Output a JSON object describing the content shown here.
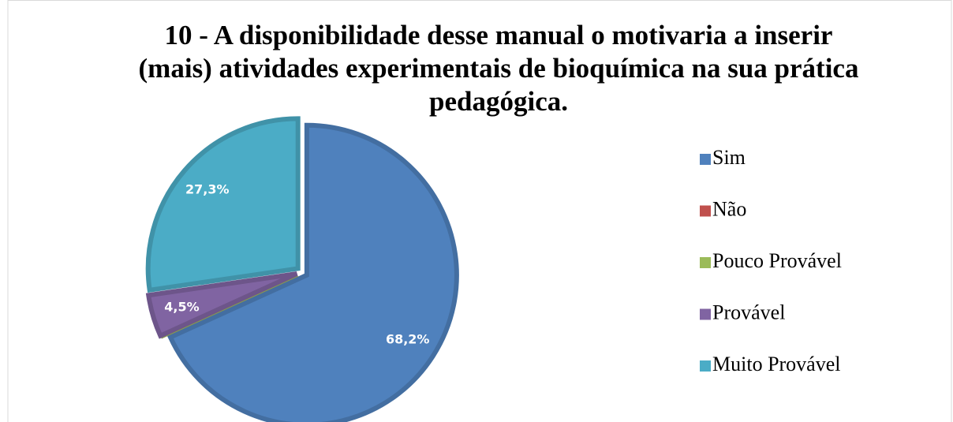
{
  "chart_data": {
    "type": "pie",
    "title": "10 - A disponibilidade desse manual o motivaria a inserir (mais) atividades experimentais de bioquímica na sua prática pedagógica.",
    "categories": [
      "Sim",
      "Não",
      "Pouco Provável",
      "Provável",
      "Muito Provável"
    ],
    "values": [
      68.2,
      0,
      0,
      4.5,
      27.3
    ],
    "value_labels": [
      "68,2%",
      null,
      null,
      "4,5%",
      "27,3%"
    ],
    "colors": [
      "#4f81bd",
      "#c0504d",
      "#9bbb59",
      "#8064a2",
      "#4bacc6"
    ],
    "legend": "right"
  }
}
